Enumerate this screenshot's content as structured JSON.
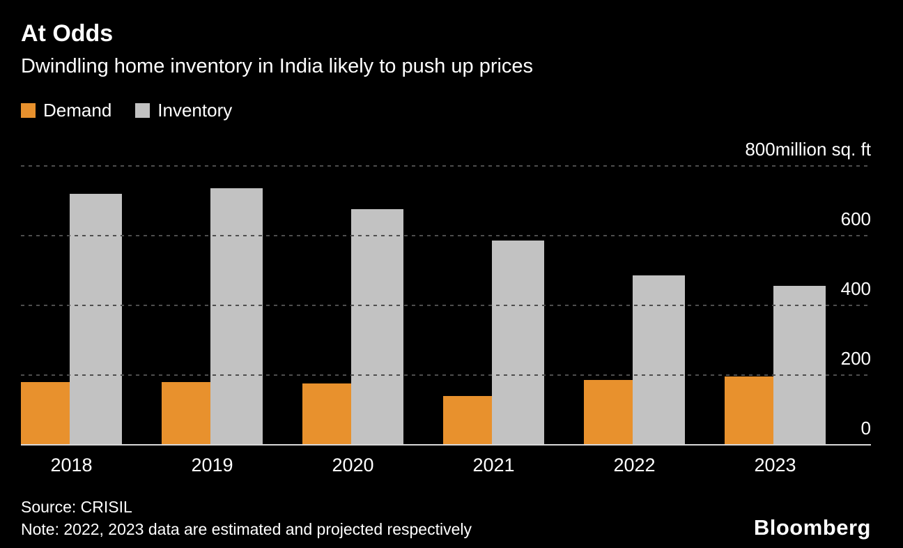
{
  "header": {
    "title": "At Odds",
    "subtitle": "Dwindling home inventory in India likely to push up prices"
  },
  "legend": [
    {
      "label": "Demand",
      "color": "#e8912d"
    },
    {
      "label": "Inventory",
      "color": "#c2c2c2"
    }
  ],
  "chart_data": {
    "type": "bar",
    "categories": [
      "2018",
      "2019",
      "2020",
      "2021",
      "2022",
      "2023"
    ],
    "series": [
      {
        "name": "Demand",
        "color": "#e8912d",
        "values": [
          180,
          180,
          175,
          140,
          185,
          195
        ]
      },
      {
        "name": "Inventory",
        "color": "#c2c2c2",
        "values": [
          720,
          735,
          675,
          585,
          485,
          455
        ]
      }
    ],
    "title": "At Odds",
    "subtitle": "Dwindling home inventory in India likely to push up prices",
    "xlabel": "",
    "ylabel": "million sq. ft",
    "ylim": [
      0,
      800
    ],
    "yticks": [
      0,
      200,
      400,
      600,
      800
    ],
    "unit_label": "million sq. ft",
    "grid": "dashed-horizontal",
    "legend_position": "top-left",
    "axis_label_side": "right"
  },
  "footer": {
    "source": "Source: CRISIL",
    "note": "Note: 2022, 2023 data are estimated and projected respectively",
    "brand": "Bloomberg"
  },
  "colors": {
    "background": "#000000",
    "text": "#ffffff",
    "grid": "#4e4e4e",
    "axis": "#d9d9d9",
    "demand": "#e8912d",
    "inventory": "#c2c2c2"
  }
}
